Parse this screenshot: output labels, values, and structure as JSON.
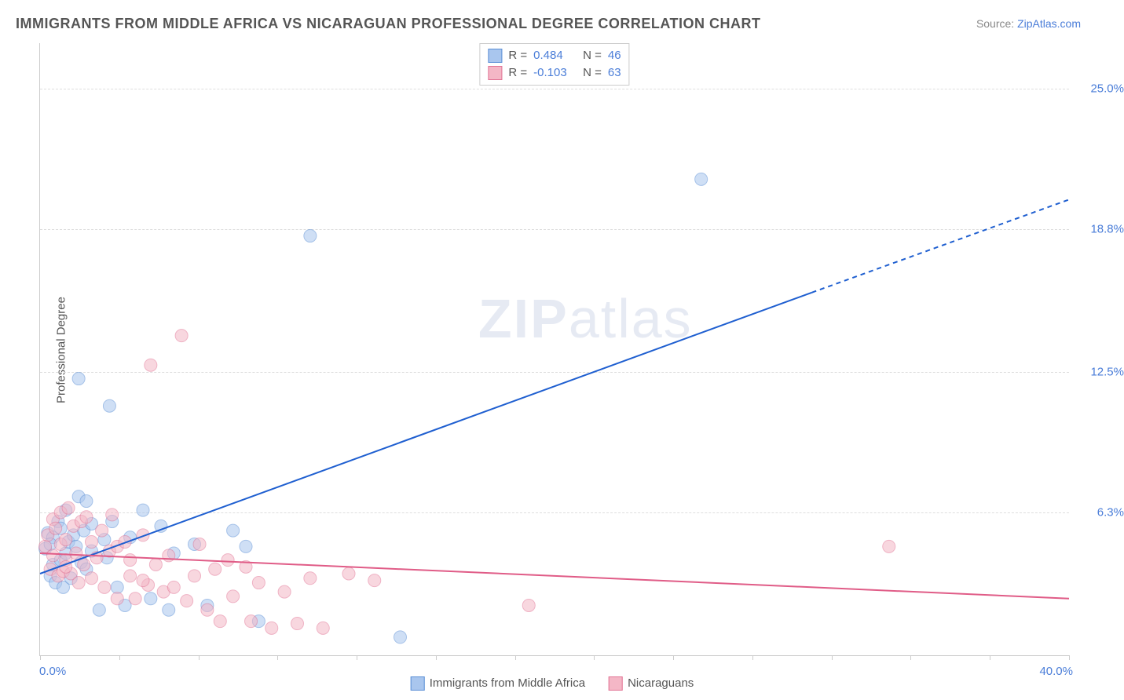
{
  "title": "IMMIGRANTS FROM MIDDLE AFRICA VS NICARAGUAN PROFESSIONAL DEGREE CORRELATION CHART",
  "source_prefix": "Source: ",
  "source_link": "ZipAtlas.com",
  "ylabel": "Professional Degree",
  "watermark_heavy": "ZIP",
  "watermark_light": "atlas",
  "chart": {
    "type": "scatter-with-regression",
    "xlim": [
      0.0,
      40.0
    ],
    "ylim": [
      0.0,
      27.0
    ],
    "x_min_label": "0.0%",
    "x_max_label": "40.0%",
    "y_ticks": [
      {
        "v": 6.3,
        "label": "6.3%"
      },
      {
        "v": 12.5,
        "label": "12.5%"
      },
      {
        "v": 18.8,
        "label": "18.8%"
      },
      {
        "v": 25.0,
        "label": "25.0%"
      }
    ],
    "x_tick_count": 13,
    "grid_color": "#dddddd",
    "axis_color": "#cccccc",
    "tick_label_color": "#4a7dd8",
    "background_color": "#ffffff",
    "marker_radius": 8,
    "marker_opacity": 0.55,
    "series": [
      {
        "name": "Immigrants from Middle Africa",
        "fill": "#a9c6ee",
        "stroke": "#5b8fd6",
        "reg_line_color": "#1f5fd0",
        "reg_line_width": 2,
        "R": 0.484,
        "N": 46,
        "reg_start": [
          0.0,
          3.6
        ],
        "reg_solid_end": [
          30.0,
          16.0
        ],
        "reg_dash_end": [
          40.0,
          20.1
        ],
        "points": [
          [
            0.2,
            4.7
          ],
          [
            0.3,
            5.4
          ],
          [
            0.4,
            3.5
          ],
          [
            0.5,
            4.0
          ],
          [
            0.5,
            5.2
          ],
          [
            0.6,
            3.2
          ],
          [
            0.7,
            5.9
          ],
          [
            0.8,
            4.2
          ],
          [
            0.8,
            5.6
          ],
          [
            0.9,
            3.0
          ],
          [
            1.0,
            4.5
          ],
          [
            1.0,
            6.4
          ],
          [
            1.1,
            5.0
          ],
          [
            1.2,
            3.4
          ],
          [
            1.3,
            5.3
          ],
          [
            1.4,
            4.8
          ],
          [
            1.5,
            7.0
          ],
          [
            1.5,
            12.2
          ],
          [
            1.6,
            4.1
          ],
          [
            1.7,
            5.5
          ],
          [
            1.8,
            3.8
          ],
          [
            1.8,
            6.8
          ],
          [
            2.0,
            4.6
          ],
          [
            2.0,
            5.8
          ],
          [
            2.3,
            2.0
          ],
          [
            2.5,
            5.1
          ],
          [
            2.6,
            4.3
          ],
          [
            2.7,
            11.0
          ],
          [
            2.8,
            5.9
          ],
          [
            3.0,
            3.0
          ],
          [
            3.3,
            2.2
          ],
          [
            3.5,
            5.2
          ],
          [
            4.0,
            6.4
          ],
          [
            4.3,
            2.5
          ],
          [
            4.7,
            5.7
          ],
          [
            5.0,
            2.0
          ],
          [
            5.2,
            4.5
          ],
          [
            6.0,
            4.9
          ],
          [
            6.5,
            2.2
          ],
          [
            7.5,
            5.5
          ],
          [
            8.0,
            4.8
          ],
          [
            8.5,
            1.5
          ],
          [
            10.5,
            18.5
          ],
          [
            14.0,
            0.8
          ],
          [
            25.7,
            21.0
          ],
          [
            0.4,
            4.9
          ]
        ]
      },
      {
        "name": "Nicaraguans",
        "fill": "#f4b7c6",
        "stroke": "#e27495",
        "reg_line_color": "#e05c87",
        "reg_line_width": 2,
        "R": -0.103,
        "N": 63,
        "reg_start": [
          0.0,
          4.5
        ],
        "reg_solid_end": [
          40.0,
          2.5
        ],
        "reg_dash_end": null,
        "points": [
          [
            0.2,
            4.8
          ],
          [
            0.3,
            5.3
          ],
          [
            0.4,
            3.8
          ],
          [
            0.5,
            6.0
          ],
          [
            0.5,
            4.4
          ],
          [
            0.6,
            5.6
          ],
          [
            0.7,
            3.5
          ],
          [
            0.8,
            4.9
          ],
          [
            0.8,
            6.3
          ],
          [
            0.9,
            3.7
          ],
          [
            1.0,
            5.1
          ],
          [
            1.0,
            4.2
          ],
          [
            1.1,
            6.5
          ],
          [
            1.2,
            3.6
          ],
          [
            1.3,
            5.7
          ],
          [
            1.4,
            4.5
          ],
          [
            1.5,
            3.2
          ],
          [
            1.6,
            5.9
          ],
          [
            1.7,
            4.0
          ],
          [
            1.8,
            6.1
          ],
          [
            2.0,
            3.4
          ],
          [
            2.0,
            5.0
          ],
          [
            2.2,
            4.3
          ],
          [
            2.4,
            5.5
          ],
          [
            2.5,
            3.0
          ],
          [
            2.7,
            4.6
          ],
          [
            2.8,
            6.2
          ],
          [
            3.0,
            4.8
          ],
          [
            3.0,
            2.5
          ],
          [
            3.3,
            5.0
          ],
          [
            3.5,
            3.5
          ],
          [
            3.5,
            4.2
          ],
          [
            3.7,
            2.5
          ],
          [
            4.0,
            5.3
          ],
          [
            4.2,
            3.1
          ],
          [
            4.3,
            12.8
          ],
          [
            4.5,
            4.0
          ],
          [
            4.8,
            2.8
          ],
          [
            5.0,
            4.4
          ],
          [
            5.2,
            3.0
          ],
          [
            5.5,
            14.1
          ],
          [
            5.7,
            2.4
          ],
          [
            6.0,
            3.5
          ],
          [
            6.2,
            4.9
          ],
          [
            6.5,
            2.0
          ],
          [
            6.8,
            3.8
          ],
          [
            7.0,
            1.5
          ],
          [
            7.3,
            4.2
          ],
          [
            7.5,
            2.6
          ],
          [
            8.0,
            3.9
          ],
          [
            8.2,
            1.5
          ],
          [
            8.5,
            3.2
          ],
          [
            9.0,
            1.2
          ],
          [
            9.5,
            2.8
          ],
          [
            10.0,
            1.4
          ],
          [
            10.5,
            3.4
          ],
          [
            11.0,
            1.2
          ],
          [
            12.0,
            3.6
          ],
          [
            13.0,
            3.3
          ],
          [
            19.0,
            2.2
          ],
          [
            33.0,
            4.8
          ],
          [
            4.0,
            3.3
          ],
          [
            1.0,
            3.9
          ]
        ]
      }
    ]
  },
  "top_legend_labels": {
    "R": "R =",
    "N": "N ="
  },
  "bottom_legend": [
    {
      "label": "Immigrants from Middle Africa",
      "fill": "#a9c6ee",
      "stroke": "#5b8fd6"
    },
    {
      "label": "Nicaraguans",
      "fill": "#f4b7c6",
      "stroke": "#e27495"
    }
  ]
}
